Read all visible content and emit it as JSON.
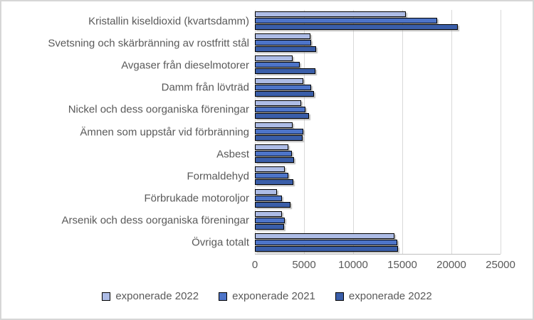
{
  "figure": {
    "background": "#ffffff",
    "border_color": "#d6d6d6"
  },
  "chart_data": {
    "type": "bar",
    "orientation": "horizontal",
    "title": "",
    "xlabel": "",
    "ylabel": "",
    "categories": [
      "Kristallin kiseldioxid (kvartsdamm)",
      "Svetsning och skärbränning av rostfritt stål",
      "Avgaser från dieselmotorer",
      "Damm från lövträd",
      "Nickel och dess oorganiska föreningar",
      "Ämnen som uppstår vid förbränning",
      "Asbest",
      "Formaldehyd",
      "Förbrukade motoroljor",
      "Arsenik och dess oorganiska föreningar",
      "Övriga totalt"
    ],
    "series": [
      {
        "name": "exponerade 2022",
        "color": "#adbce6",
        "values": [
          15400,
          5700,
          3900,
          5000,
          4800,
          3900,
          3500,
          3150,
          2300,
          2800,
          14300
        ]
      },
      {
        "name": "exponerade 2021",
        "color": "#4d74c8",
        "values": [
          18600,
          5800,
          4650,
          5800,
          5200,
          5000,
          3850,
          3500,
          2800,
          3150,
          14600
        ]
      },
      {
        "name": "exponerade 2022",
        "color": "#3a5ea9",
        "values": [
          20700,
          6300,
          6250,
          6100,
          5550,
          4900,
          4050,
          4000,
          3700,
          3050,
          14650
        ]
      }
    ],
    "xlim": [
      0,
      25000
    ],
    "xticks": [
      0,
      5000,
      10000,
      15000,
      20000,
      25000
    ],
    "grid": true,
    "legend_position": "bottom",
    "bar_border_color": "#000000",
    "gridline_color": "#d9d9d9",
    "axis_line_color": "#bfbfbf",
    "text_color": "#595959"
  }
}
